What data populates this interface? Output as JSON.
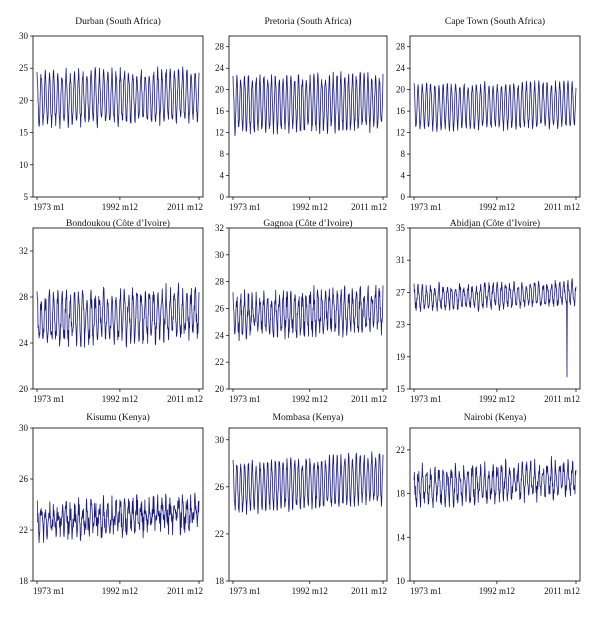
{
  "chart_data": [
    {
      "type": "line",
      "title": "Durban (South Africa)",
      "ylim": [
        5,
        30
      ],
      "yticks": [
        5,
        10,
        15,
        20,
        25,
        30
      ],
      "x_tick_labels": [
        "1973 m1",
        "1992 m12",
        "2011 m12"
      ],
      "series": [
        {
          "mean": 20.5,
          "amplitude": 3.8,
          "noise": 0.9,
          "trend": 0.3
        }
      ]
    },
    {
      "type": "line",
      "title": "Pretoria (South Africa)",
      "ylim": [
        0,
        30
      ],
      "yticks": [
        0,
        4,
        8,
        12,
        16,
        20,
        24,
        28
      ],
      "x_tick_labels": [
        "1973 m1",
        "1992 m12",
        "2011 m12"
      ],
      "series": [
        {
          "mean": 17.5,
          "amplitude": 4.8,
          "noise": 1.1,
          "trend": 0.3
        }
      ]
    },
    {
      "type": "line",
      "title": "Cape Town (South Africa)",
      "ylim": [
        0,
        30
      ],
      "yticks": [
        0,
        4,
        8,
        12,
        16,
        20,
        24,
        28
      ],
      "x_tick_labels": [
        "1973 m1",
        "1992 m12",
        "2011 m12"
      ],
      "series": [
        {
          "mean": 17.0,
          "amplitude": 4.0,
          "noise": 0.7,
          "trend": 0.2
        }
      ]
    },
    {
      "type": "line",
      "title": "Bondoukou (Côte d’Ivoire)",
      "ylim": [
        20,
        34
      ],
      "yticks": [
        20,
        24,
        28,
        32
      ],
      "x_tick_labels": [
        "1973 m1",
        "1992 m12",
        "2011 m12"
      ],
      "series": [
        {
          "mean": 26.3,
          "amplitude": 1.9,
          "noise": 0.9,
          "trend": 0.3
        }
      ]
    },
    {
      "type": "line",
      "title": "Gagnoa (Côte d’Ivoire)",
      "ylim": [
        20,
        32
      ],
      "yticks": [
        20,
        22,
        24,
        26,
        28,
        30,
        32
      ],
      "x_tick_labels": [
        "1973 m1",
        "1992 m12",
        "2011 m12"
      ],
      "series": [
        {
          "mean": 25.7,
          "amplitude": 1.3,
          "noise": 0.7,
          "trend": 0.3
        }
      ]
    },
    {
      "type": "line",
      "title": "Abidjan (Côte d’Ivoire)",
      "ylim": [
        15,
        35
      ],
      "yticks": [
        15,
        19,
        23,
        27,
        31,
        35
      ],
      "x_tick_labels": [
        "1973 m1",
        "1992 m12",
        "2011 m12"
      ],
      "series": [
        {
          "mean": 26.6,
          "amplitude": 1.3,
          "noise": 0.6,
          "trend": 0.3,
          "outlier": {
            "month": 441,
            "value": 16.5
          }
        }
      ]
    },
    {
      "type": "line",
      "title": "Kisumu (Kenya)",
      "ylim": [
        18,
        30
      ],
      "yticks": [
        18,
        22,
        26,
        30
      ],
      "x_tick_labels": [
        "1973 m1",
        "1992 m12",
        "2011 m12"
      ],
      "series": [
        {
          "mean": 23.0,
          "amplitude": 0.9,
          "noise": 0.9,
          "trend": 0.4
        }
      ]
    },
    {
      "type": "line",
      "title": "Mombasa (Kenya)",
      "ylim": [
        18,
        31
      ],
      "yticks": [
        18,
        22,
        26,
        30
      ],
      "x_tick_labels": [
        "1973 m1",
        "1992 m12",
        "2011 m12"
      ],
      "series": [
        {
          "mean": 26.3,
          "amplitude": 1.9,
          "noise": 0.5,
          "trend": 0.4
        }
      ]
    },
    {
      "type": "line",
      "title": "Nairobi (Kenya)",
      "ylim": [
        10,
        24
      ],
      "yticks": [
        10,
        14,
        18,
        22
      ],
      "x_tick_labels": [
        "1973 m1",
        "1992 m12",
        "2011 m12"
      ],
      "series": [
        {
          "mean": 19.0,
          "amplitude": 1.4,
          "noise": 0.8,
          "trend": 0.4
        }
      ]
    }
  ],
  "colors": {
    "series": "#1a1a7e",
    "axis": "#000000"
  }
}
